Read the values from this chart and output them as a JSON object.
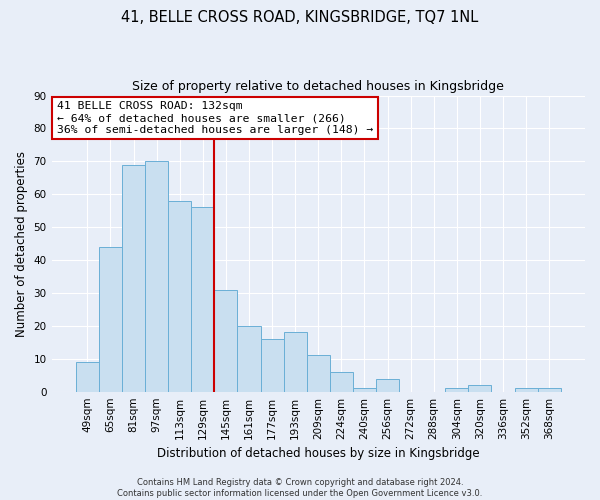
{
  "title": "41, BELLE CROSS ROAD, KINGSBRIDGE, TQ7 1NL",
  "subtitle": "Size of property relative to detached houses in Kingsbridge",
  "xlabel": "Distribution of detached houses by size in Kingsbridge",
  "ylabel": "Number of detached properties",
  "bar_labels": [
    "49sqm",
    "65sqm",
    "81sqm",
    "97sqm",
    "113sqm",
    "129sqm",
    "145sqm",
    "161sqm",
    "177sqm",
    "193sqm",
    "209sqm",
    "224sqm",
    "240sqm",
    "256sqm",
    "272sqm",
    "288sqm",
    "304sqm",
    "320sqm",
    "336sqm",
    "352sqm",
    "368sqm"
  ],
  "bar_values": [
    9,
    44,
    69,
    70,
    58,
    56,
    31,
    20,
    16,
    18,
    11,
    6,
    1,
    4,
    0,
    0,
    1,
    2,
    0,
    1,
    1
  ],
  "bar_color": "#c9dff0",
  "bar_edge_color": "#6aafd6",
  "ylim": [
    0,
    90
  ],
  "yticks": [
    0,
    10,
    20,
    30,
    40,
    50,
    60,
    70,
    80,
    90
  ],
  "property_line_x": 5.5,
  "property_line_color": "#cc0000",
  "annotation_box_text": "41 BELLE CROSS ROAD: 132sqm\n← 64% of detached houses are smaller (266)\n36% of semi-detached houses are larger (148) →",
  "annotation_box_color": "#cc0000",
  "footnote": "Contains HM Land Registry data © Crown copyright and database right 2024.\nContains public sector information licensed under the Open Government Licence v3.0.",
  "bg_color": "#e8eef8",
  "plot_bg_color": "#e8eef8",
  "grid_color": "#ffffff"
}
